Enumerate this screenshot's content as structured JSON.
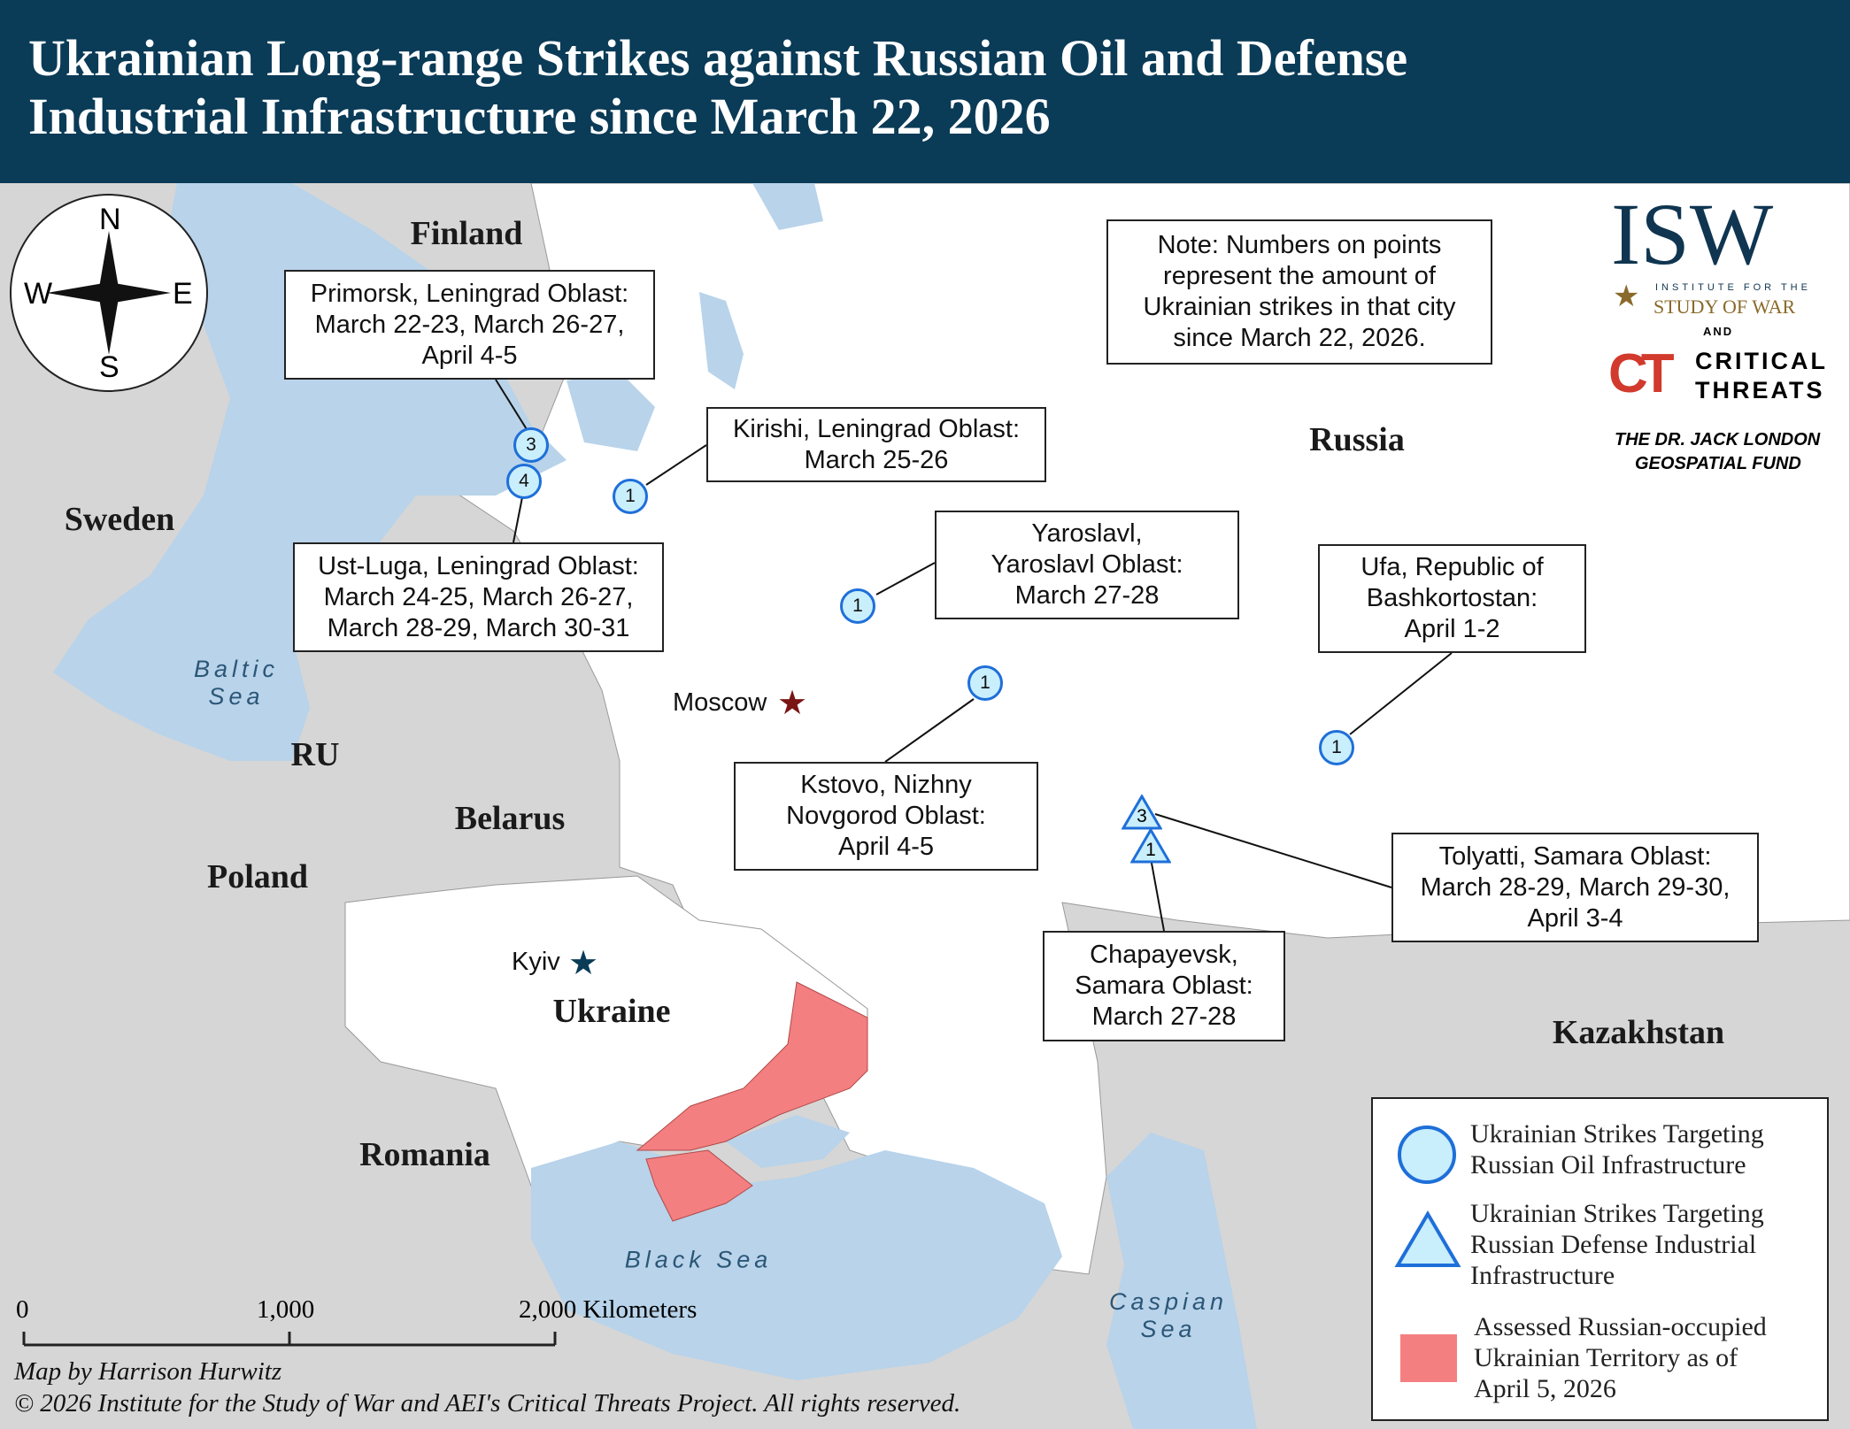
{
  "header": {
    "title_line1": "Ukrainian Long-range Strikes against Russian Oil and Defense",
    "title_line2": "Industrial Infrastructure since March 22, 2026"
  },
  "compass": {
    "n": "N",
    "s": "S",
    "e": "E",
    "w": "W"
  },
  "countries": {
    "finland": "Finland",
    "sweden": "Sweden",
    "ru": "RU",
    "belarus": "Belarus",
    "poland": "Poland",
    "ukraine": "Ukraine",
    "romania": "Romania",
    "russia": "Russia",
    "kazakhstan": "Kazakhstan"
  },
  "seas": {
    "baltic_1": "Baltic",
    "baltic_2": "Sea",
    "black": "Black Sea",
    "caspian_1": "Caspian",
    "caspian_2": "Sea"
  },
  "cities": {
    "moscow": "Moscow",
    "kyiv": "Kyiv"
  },
  "note": [
    "Note: Numbers on points",
    "represent the amount of",
    "Ukrainian strikes in that city",
    "since March 22, 2026."
  ],
  "callouts": {
    "primorsk": [
      "Primorsk, Leningrad Oblast:",
      "March 22-23, March 26-27,",
      "April 4-5"
    ],
    "kirishi": [
      "Kirishi, Leningrad Oblast:",
      "March 25-26"
    ],
    "ust_luga": [
      "Ust-Luga, Leningrad Oblast:",
      "March 24-25, March 26-27,",
      "March 28-29, March 30-31"
    ],
    "yaroslavl": [
      "Yaroslavl,",
      "Yaroslavl Oblast:",
      "March 27-28"
    ],
    "ufa": [
      "Ufa, Republic of",
      "Bashkortostan:",
      "April 1-2"
    ],
    "kstovo": [
      "Kstovo, Nizhny",
      "Novgorod Oblast:",
      "April 4-5"
    ],
    "tolyatti": [
      "Tolyatti, Samara Oblast:",
      "March 28-29, March 29-30,",
      "April 3-4"
    ],
    "chapayevsk": [
      "Chapayevsk,",
      "Samara Oblast:",
      "March 27-28"
    ]
  },
  "markers": {
    "primorsk": "3",
    "ust_luga": "4",
    "kirishi": "1",
    "yaroslavl": "1",
    "kstovo": "1",
    "ufa": "1",
    "tolyatti": "3",
    "chapayevsk": "1"
  },
  "legend": {
    "oil": [
      "Ukrainian Strikes Targeting",
      "Russian Oil Infrastructure"
    ],
    "defense": [
      "Ukrainian Strikes Targeting",
      "Russian Defense Industrial",
      "Infrastructure"
    ],
    "occupied": [
      "Assessed Russian-occupied",
      "Ukrainian Territory as of",
      "April 5, 2026"
    ]
  },
  "scale": {
    "t0": "0",
    "t1": "1,000",
    "t2": "2,000 Kilometers"
  },
  "credits": {
    "author": "Map by Harrison Hurwitz",
    "copyright": "© 2026 Institute for the Study of War and AEI's Critical Threats Project. All rights reserved."
  },
  "logo": {
    "isw": "ISW",
    "isw_sub1": "INSTITUTE FOR THE",
    "isw_sub2": "STUDY OF WAR",
    "and": "AND",
    "ct1": "CRITICAL",
    "ct2": "THREATS",
    "fund1": "THE DR. JACK LONDON",
    "fund2": "GEOSPATIAL FUND"
  },
  "colors": {
    "header": "#0a3b57",
    "sea": "#b8d3ea",
    "occupied": "#f47f80",
    "oil_marker_fill": "#c9eefc",
    "marker_stroke": "#1e6fd9",
    "land_other": "#d6d6d6",
    "land_focus": "#ffffff"
  }
}
